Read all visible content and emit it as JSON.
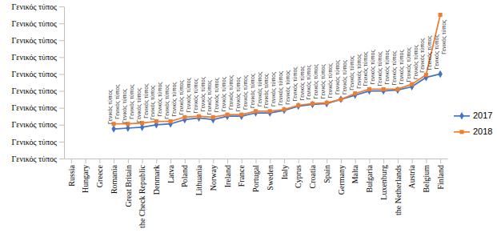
{
  "chart_data": {
    "type": "line",
    "categories": [
      "Russia",
      "Hungary",
      "Greece",
      "Romania",
      "Great Britain",
      "the Check Republic",
      "Denmark",
      "Latva",
      "Poland",
      "Lithuania",
      "Norway",
      "Ireland",
      "France",
      "Portugal",
      "Sweden",
      "Italy",
      "Cyprus",
      "Croatia",
      "Spain",
      "Germany",
      "Malta",
      "Bulgaria",
      "Luxenburg",
      "the Netherlands",
      "Austria",
      "Belgium",
      "Finland"
    ],
    "series": [
      {
        "name": "2017",
        "color": "#4472c4",
        "marker": "diamond",
        "values": [
          null,
          null,
          null,
          1.75,
          1.8,
          1.85,
          2.0,
          2.05,
          2.3,
          2.4,
          2.3,
          2.5,
          2.5,
          2.7,
          2.7,
          2.85,
          3.1,
          3.2,
          3.25,
          3.5,
          3.75,
          4.0,
          4.0,
          4.05,
          4.25,
          4.8,
          5.0
        ],
        "value_labels": [
          null,
          null,
          null,
          "Γενικός τύπος",
          "Γενικός τύπος",
          "Γενικός τύπος",
          "Γενικός τύπος",
          "Γενικός τύπος",
          "Γενικός τύπος",
          "Γενικός τύπος",
          "Γενικός τύπος",
          "Γενικός τύπος",
          "Γενικός τύπος",
          "Γενικός τύπος",
          "Γενικός τύπος",
          "Γενικός τύπος",
          "Γενικός τύπος",
          "Γενικός τύπος",
          "Γενικός τύπος",
          "Γενικός τύπος",
          "Γενικός τύπος",
          "Γενικός τύπος",
          "Γενικός τύπος",
          "Γενικός τύπος",
          "Γενικός τύπος",
          "Γενικός τύπος",
          "Γενικός τύπος"
        ]
      },
      {
        "name": "2018",
        "color": "#ed7d31",
        "marker": "square",
        "values": [
          null,
          null,
          null,
          2.05,
          2.05,
          2.1,
          2.2,
          2.2,
          2.45,
          2.5,
          2.45,
          2.6,
          2.6,
          2.8,
          2.8,
          2.9,
          3.15,
          3.25,
          3.3,
          3.5,
          3.85,
          4.1,
          4.1,
          4.1,
          4.4,
          4.95,
          8.5
        ],
        "value_labels": [
          null,
          null,
          null,
          "Γενικός τύπος",
          "Γενικός τύπος",
          "Γενικός τύπος",
          "Γενικός τύπος",
          "Γενικός τύπος",
          "Γενικός τύπος",
          "Γενικός τύπος",
          "Γενικός τύπος",
          "Γενικός τύπος",
          "Γενικός τύπος",
          "Γενικός τύπος",
          "Γενικός τύπος",
          "Γενικός τύπος",
          "Γενικός τύπος",
          "Γενικός τύπος",
          "Γενικός τύπος",
          "Γενικός τύπος",
          "Γενικός τύπος",
          "Γενικός τύπος",
          "Γενικός τύπος",
          "Γενικός τύπος",
          "Γενικός τύπος",
          "Γενικός τύπος",
          "Γενικός τύπος"
        ]
      }
    ],
    "ylim": [
      0,
      9
    ],
    "yticks": [
      {
        "value": 0,
        "label": "Γενικός τύπος"
      },
      {
        "value": 1,
        "label": "Γενικός τύπος"
      },
      {
        "value": 2,
        "label": "Γενικός τύπος"
      },
      {
        "value": 3,
        "label": "Γενικός τύπος"
      },
      {
        "value": 4,
        "label": "Γενικός τύπος"
      },
      {
        "value": 5,
        "label": "Γενικός τύπος"
      },
      {
        "value": 6,
        "label": "Γενικός τύπος"
      },
      {
        "value": 7,
        "label": "Γενικός τύπος"
      },
      {
        "value": 8,
        "label": "Γενικός τύπος"
      },
      {
        "value": 9,
        "label": "Γενικός τύπος"
      }
    ],
    "grid": false,
    "legend": "right",
    "data_labels": true
  }
}
